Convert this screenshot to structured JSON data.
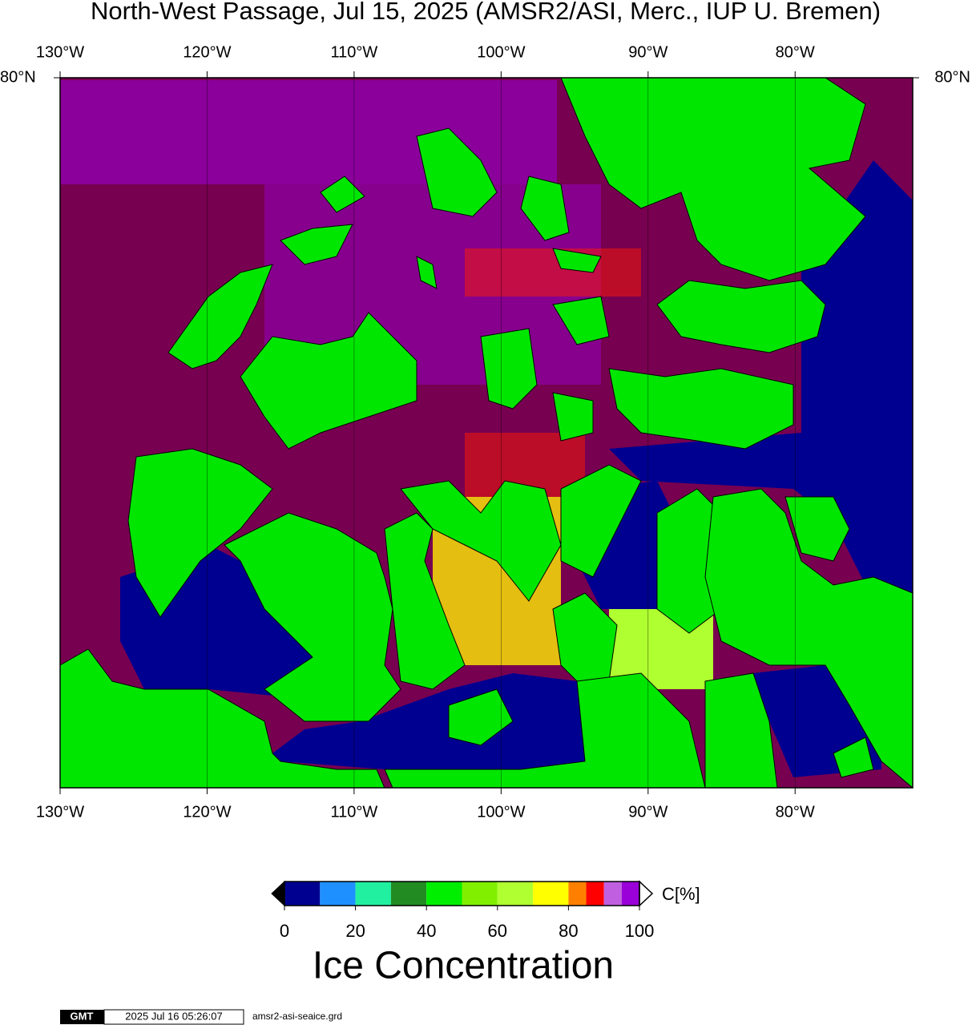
{
  "map": {
    "title": "North-West Passage, Jul 15, 2025 (AMSR2/ASI, Merc., IUP U. Bremen)",
    "projection": "mercator",
    "lonlim": [
      -130,
      -72
    ],
    "latlim": [
      67,
      80
    ],
    "lonticks": [
      {
        "value": -130,
        "label": "130°W"
      },
      {
        "value": -120,
        "label": "120°W"
      },
      {
        "value": -110,
        "label": "110°W"
      },
      {
        "value": -100,
        "label": "100°W"
      },
      {
        "value": -90,
        "label": "90°W"
      },
      {
        "value": -80,
        "label": "80°W"
      }
    ],
    "latticks": [
      {
        "value": 80,
        "label": "80°N"
      }
    ],
    "colorbar": {
      "label": "C[%]",
      "title": "Ice Concentration",
      "range": [
        0,
        100
      ],
      "ticks": [
        0,
        20,
        40,
        60,
        80,
        100
      ],
      "levels": [
        0,
        10,
        20,
        30,
        40,
        50,
        60,
        70,
        80,
        85,
        90,
        95,
        100
      ],
      "colors": [
        "#000090",
        "#1e90ff",
        "#20f0a0",
        "#228b22",
        "#00ee00",
        "#80f000",
        "#b0ff30",
        "#ffff00",
        "#ff8000",
        "#ff0000",
        "#c060e0",
        "#9a00d8"
      ]
    },
    "footer": {
      "logo": "GMT",
      "timestamp": "2025 Jul 16 05:26:07",
      "file": "amsr2-asi-seaice.grd"
    }
  }
}
